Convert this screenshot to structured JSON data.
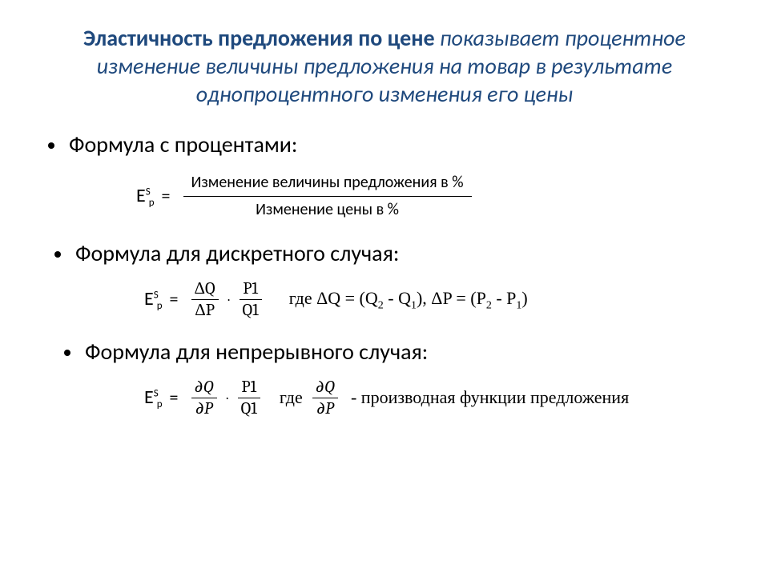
{
  "title": {
    "bold": "Эластичность предложения по цене ",
    "italic": "показывает процентное изменение величины предложения на товар в результате однопроцентного изменения его цены"
  },
  "bullets": {
    "b1": "Формула с процентами:",
    "b2": "Формула для дискретного случая:",
    "b3": "Формула для непрерывного случая:"
  },
  "symbol": {
    "E": "E",
    "S": "S",
    "p": "p",
    "eq": "="
  },
  "formula1": {
    "num": "Изменение величины предложения в %",
    "den": "Изменение цены в %"
  },
  "formula2": {
    "frac1_num": "ΔQ",
    "frac1_den": "ΔP",
    "dot": "·",
    "frac2_num": "P1",
    "frac2_den": "Q1",
    "where_prefix": "где ΔQ = (Q",
    "where_q2": "2",
    "where_mid1": " - Q",
    "where_q1": "1",
    "where_closeparen": "),  ΔP = (P",
    "where_p2": "2",
    "where_mid2": " - P",
    "where_p1": "1",
    "where_end": ")"
  },
  "formula3": {
    "frac1_num": "∂Q",
    "frac1_den": "∂P",
    "dot": "·",
    "frac2_num": "P1",
    "frac2_den": "Q1",
    "where_lbl": "где",
    "where_frac_num": "∂Q",
    "where_frac_den": "∂P",
    "tail": "- производная функции предложения"
  },
  "colors": {
    "title": "#1f497d",
    "text": "#000000",
    "background": "#ffffff"
  },
  "fonts": {
    "title_size": 28,
    "bullet_size": 28,
    "formula_size": 22,
    "serif_size": 22
  }
}
